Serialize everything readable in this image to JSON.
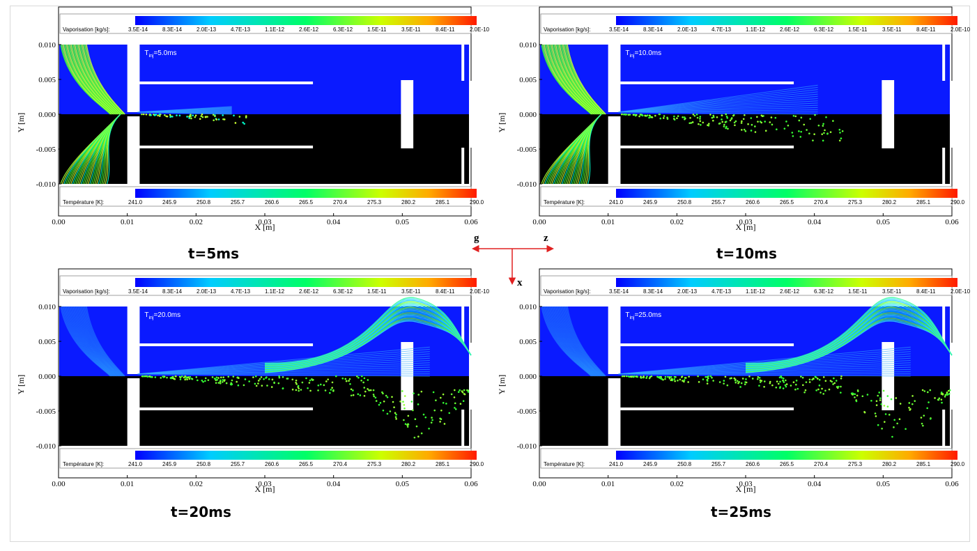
{
  "panels": [
    {
      "caption": "t=5ms",
      "tinj": "=5.0ms"
    },
    {
      "caption": "t=10ms",
      "tinj": "=10.0ms"
    },
    {
      "caption": "t=20ms",
      "tinj": "=20.0ms"
    },
    {
      "caption": "t=25ms",
      "tinj": "=25.0ms"
    }
  ],
  "tinj_prefix": "T",
  "tinj_sub": "inj",
  "legend_vap": {
    "title": "Vaporisation [kg/s]:",
    "labels": [
      "3.5E-14",
      "8.3E-14",
      "2.0E-13",
      "4.7E-13",
      "1.1E-12",
      "2.6E-12",
      "6.3E-12",
      "1.5E-11",
      "3.5E-11",
      "8.4E-11",
      "2.0E-10"
    ]
  },
  "legend_temp": {
    "title": "Température [K]:",
    "labels": [
      "241.0",
      "245.9",
      "250.8",
      "255.7",
      "260.6",
      "265.5",
      "270.4",
      "275.3",
      "280.2",
      "285.1",
      "290.0"
    ]
  },
  "x_axis": {
    "label": "X [m]",
    "ticks": [
      "0.00",
      "0.01",
      "0.02",
      "0.03",
      "0.04",
      "0.05",
      "0.06"
    ]
  },
  "y_axis": {
    "label": "Y [m]",
    "ticks": [
      "0.010",
      "0.005",
      "0.000",
      "-0.005",
      "-0.010"
    ]
  },
  "axes_marker": {
    "g": "g",
    "z": "z",
    "x": "x"
  },
  "colors": {
    "upper_domain": "#0a1aff",
    "lower_domain": "#000000",
    "arrow": "#e02020"
  }
}
